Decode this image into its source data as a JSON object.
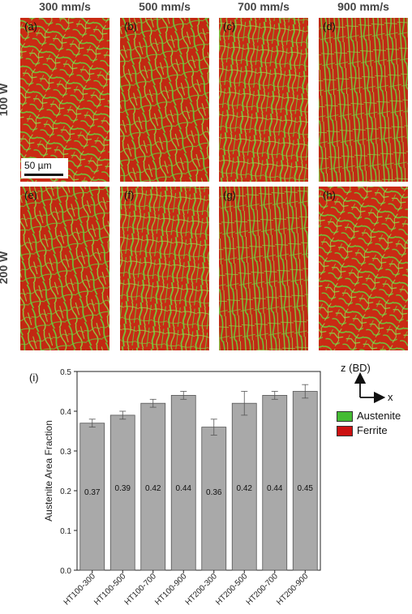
{
  "columns": [
    "300 mm/s",
    "500 mm/s",
    "700 mm/s",
    "900 mm/s"
  ],
  "rows": [
    "100 W",
    "200 W"
  ],
  "panels": [
    "(a)",
    "(b)",
    "(c)",
    "(d)",
    "(e)",
    "(f)",
    "(g)",
    "(h)"
  ],
  "scale_bar": "50 µm",
  "coord_axes": {
    "z": "z (BD)",
    "x": "x"
  },
  "legend": [
    {
      "name": "Austenite",
      "color": "#44bb33"
    },
    {
      "name": "Ferrite",
      "color": "#cc1111"
    }
  ],
  "chart_data": {
    "type": "bar",
    "panel_label": "(i)",
    "ylabel": "Austenite Area Fraction",
    "ylim": [
      0.0,
      0.5
    ],
    "yticks": [
      "0.0",
      "0.1",
      "0.2",
      "0.3",
      "0.4",
      "0.5"
    ],
    "categories": [
      "HT100-300",
      "HT100-500",
      "HT100-700",
      "HT100-900",
      "HT200-300",
      "HT200-500",
      "HT200-700",
      "HT200-900"
    ],
    "values": [
      0.37,
      0.39,
      0.42,
      0.44,
      0.36,
      0.42,
      0.44,
      0.45
    ],
    "value_labels": [
      "0.37",
      "0.39",
      "0.42",
      "0.44",
      "0.36",
      "0.42",
      "0.44",
      "0.45"
    ],
    "errors": [
      0.01,
      0.01,
      0.01,
      0.01,
      0.02,
      0.03,
      0.01,
      0.017
    ],
    "bar_color": "#a9a9a9"
  }
}
